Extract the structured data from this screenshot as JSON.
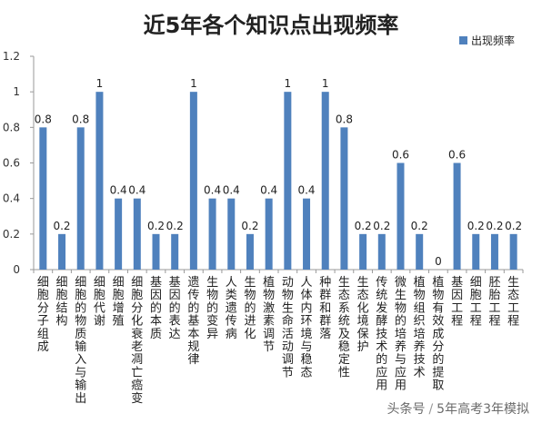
{
  "chart_data": {
    "type": "bar",
    "title": "近5年各个知识点出现频率",
    "series": [
      {
        "name": "出现频率",
        "color": "#4f81bd",
        "values": [
          0.8,
          0.2,
          0.8,
          1,
          0.4,
          0.4,
          0.2,
          0.2,
          1,
          0.4,
          0.4,
          0.2,
          0.4,
          1,
          0.4,
          1,
          0.8,
          0.2,
          0.2,
          0.6,
          0.2,
          0,
          0.6,
          0.2,
          0.2,
          0.2
        ]
      }
    ],
    "categories": [
      "细胞分子组成",
      "细胞结构",
      "细胞的物质输入与输出",
      "细胞代谢",
      "细胞增殖",
      "细胞分化衰老凋亡癌变",
      "基因的本质",
      "基因的表达",
      "遗传的基本规律",
      "生物的变异",
      "人类遗传病",
      "生物的进化",
      "植物激素调节",
      "动物生命活动调节",
      "人体内环境与稳态",
      "种群和群落",
      "生态系统及稳定性",
      "生态化境保护",
      "传统发酵技术的应用",
      "微生物的培养与应用",
      "植物组织培养技术",
      "植物有效成分的提取",
      "基因工程",
      "细胞工程",
      "胚胎工程",
      "生态工程"
    ],
    "data_labels": [
      "0.8",
      "0.2",
      "0.8",
      "1",
      "0.4",
      "0.4",
      "0.2",
      "0.2",
      "1",
      "0.4",
      "0.4",
      "0.2",
      "0.4",
      "1",
      "0.4",
      "1",
      "0.8",
      "0.2",
      "0.2",
      "0.6",
      "0.2",
      "0",
      "0.6",
      "0.2",
      "0.2",
      "0.2"
    ],
    "y_ticks": [
      "0",
      "0.2",
      "0.4",
      "0.6",
      "0.8",
      "1",
      "1.2"
    ],
    "ylim": [
      0,
      1.2
    ],
    "legend_position": "top-right",
    "grid": false
  },
  "watermark": {
    "source": "头条号",
    "separator": "/",
    "account": "5年高考3年模拟"
  }
}
